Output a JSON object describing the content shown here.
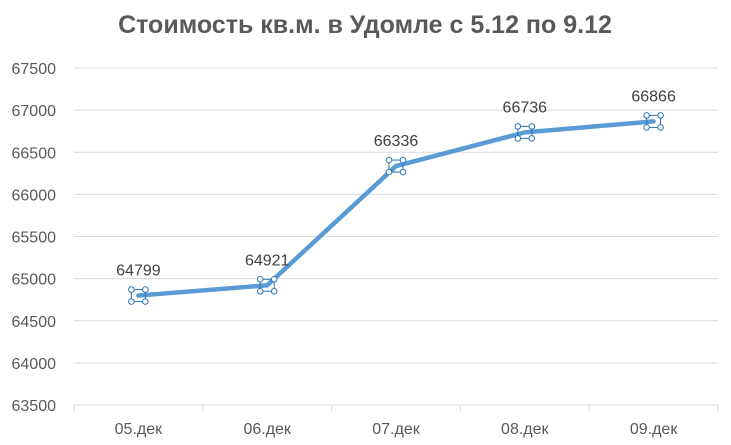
{
  "chart_data": {
    "type": "line",
    "title": "Стоимость кв.м. в Удомле с 5.12 по 9.12",
    "xlabel": "",
    "ylabel": "",
    "categories": [
      "05.дек",
      "06.дек",
      "07.дек",
      "08.дек",
      "09.дек"
    ],
    "values": [
      64799,
      64921,
      66336,
      66736,
      66866
    ],
    "data_labels": [
      "64799",
      "64921",
      "66336",
      "66736",
      "66866"
    ],
    "ylim": [
      63500,
      67500
    ],
    "yticks": [
      63500,
      64000,
      64500,
      65000,
      65500,
      66000,
      66500,
      67000,
      67500
    ],
    "ytick_labels": [
      "63500",
      "64000",
      "64500",
      "65000",
      "65500",
      "66000",
      "66500",
      "67000",
      "67500"
    ],
    "grid": true,
    "legend": "none",
    "colors": {
      "line": "#5B9BD5",
      "grid": "#D9D9D9",
      "text": "#595959",
      "handle": "#2E75B6"
    }
  }
}
